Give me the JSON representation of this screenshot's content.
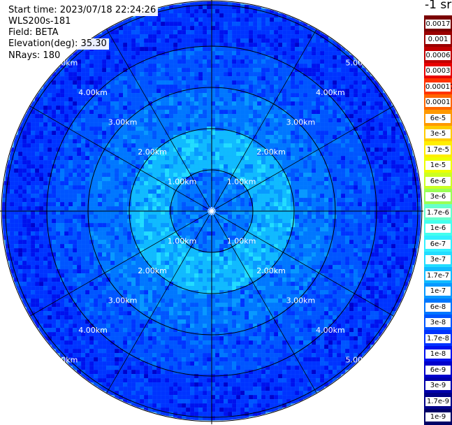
{
  "info": {
    "start_time": "Start time: 2023/07/18 22:24:26",
    "instrument": "WLS200s-181",
    "field": "Field: BETA",
    "elevation": "Elevation(deg): 35.30",
    "nrays": "NRays: 180"
  },
  "unit": "-1 sr",
  "chart_data": {
    "type": "heatmap",
    "subtype": "polar-ppi",
    "field": "BETA",
    "nrays": 180,
    "range_rings_km": [
      1,
      2,
      3,
      4,
      5
    ],
    "ring_labels": [
      "1.00km",
      "2.00km",
      "3.00km",
      "4.00km",
      "5.00km"
    ],
    "max_range_km": 5.1,
    "spoke_angles_deg": [
      0,
      30,
      60,
      90,
      120,
      150,
      180,
      210,
      240,
      270,
      300,
      330
    ],
    "dominant_value_by_range_km": [
      {
        "range_km": 0.5,
        "value": "6e-8"
      },
      {
        "range_km": 1.5,
        "value": "1.7e-7"
      },
      {
        "range_km": 2.5,
        "value": "6e-8"
      },
      {
        "range_km": 3.5,
        "value": "3e-8"
      },
      {
        "range_km": 4.5,
        "value": "1.7e-8"
      }
    ],
    "colorbar": {
      "labels": [
        "0.0017",
        "0.001",
        "0.0006",
        "0.0003",
        "0.00017",
        "0.0001",
        "6e-5",
        "3e-5",
        "1.7e-5",
        "1e-5",
        "6e-6",
        "3e-6",
        "1.7e-6",
        "1e-6",
        "6e-7",
        "3e-7",
        "1.7e-7",
        "1e-7",
        "6e-8",
        "3e-8",
        "1.7e-8",
        "1e-8",
        "6e-9",
        "3e-9",
        "1.7e-9",
        "1e-9"
      ],
      "colors": [
        "#7a0000",
        "#9a0000",
        "#c00000",
        "#e80000",
        "#ff3300",
        "#ff6600",
        "#ff9900",
        "#ffcc00",
        "#ffee00",
        "#eeff00",
        "#ccff22",
        "#99ff55",
        "#66ffcc",
        "#44ffee",
        "#33f0ff",
        "#22ddff",
        "#10bbff",
        "#0899ff",
        "#0077ff",
        "#0055ff",
        "#0033ff",
        "#0011ee",
        "#0000cc",
        "#0000aa",
        "#000088",
        "#000066"
      ]
    }
  }
}
